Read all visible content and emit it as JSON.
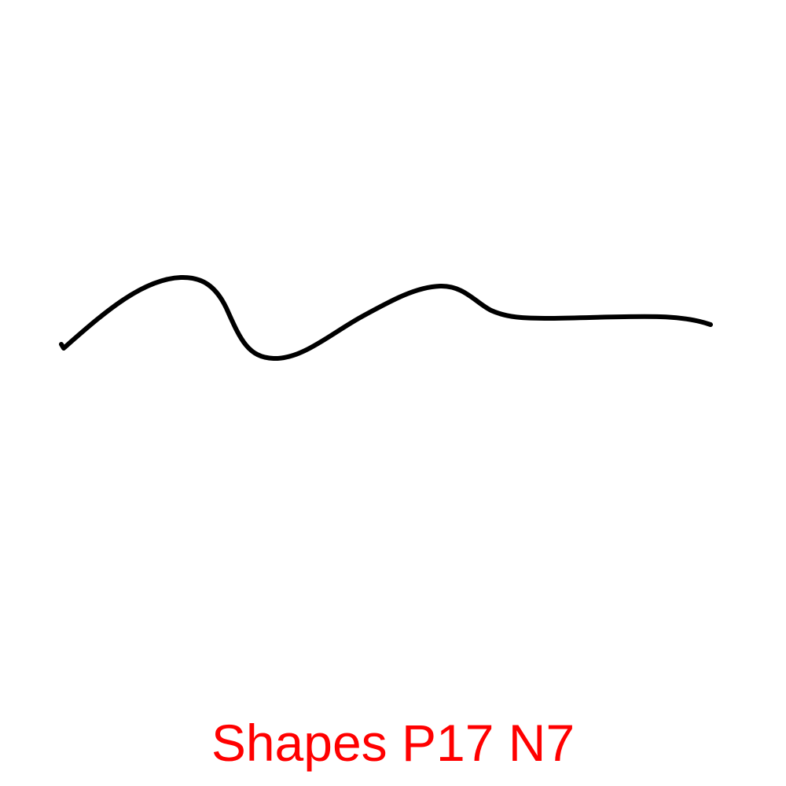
{
  "caption": {
    "text": "Shapes P17 N7",
    "color": "#ff0000"
  },
  "stroke": {
    "shape": "wavy-line",
    "color": "#000000"
  },
  "background_color": "#ffffff"
}
